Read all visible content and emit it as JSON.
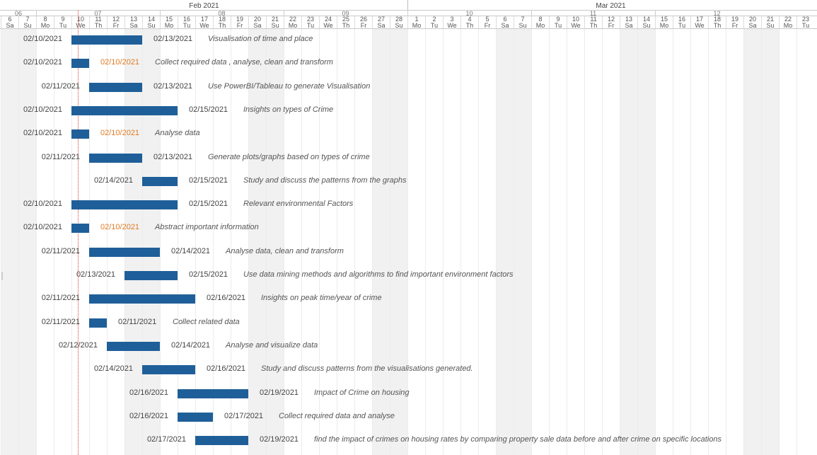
{
  "timeline": {
    "start_date": "2021-02-06",
    "visible_days": 46,
    "months": [
      {
        "label": "Feb 2021",
        "start": "2021-02-01",
        "end": "2021-02-28"
      },
      {
        "label": "Mar 2021",
        "start": "2021-03-01",
        "end": "2021-03-31"
      }
    ],
    "weeks": [
      "06",
      "07",
      "08",
      "09",
      "10",
      "11",
      "12"
    ],
    "today": "2021-02-10",
    "colors": {
      "bar": "#1f5f99",
      "milestone_date": "#e07b22",
      "today_line": "#d93a3a",
      "weekend": "#f1f1f1"
    }
  },
  "tasks": [
    {
      "start_label": "02/10/2021",
      "end_label": "02/13/2021",
      "name": "Visualisation of time and place",
      "start": "2021-02-10",
      "end": "2021-02-13",
      "milestone": false
    },
    {
      "start_label": "02/10/2021",
      "end_label": "02/10/2021",
      "name": "Collect required data , analyse, clean and transform",
      "start": "2021-02-10",
      "end": "2021-02-10",
      "milestone": true
    },
    {
      "start_label": "02/11/2021",
      "end_label": "02/13/2021",
      "name": "Use PowerBI/Tableau to generate Visualisation",
      "start": "2021-02-11",
      "end": "2021-02-13",
      "milestone": false
    },
    {
      "start_label": "02/10/2021",
      "end_label": "02/15/2021",
      "name": "Insights on types of Crime",
      "start": "2021-02-10",
      "end": "2021-02-15",
      "milestone": false
    },
    {
      "start_label": "02/10/2021",
      "end_label": "02/10/2021",
      "name": "Analyse data",
      "start": "2021-02-10",
      "end": "2021-02-10",
      "milestone": true
    },
    {
      "start_label": "02/11/2021",
      "end_label": "02/13/2021",
      "name": "Generate plots/graphs based on types of crime",
      "start": "2021-02-11",
      "end": "2021-02-13",
      "milestone": false
    },
    {
      "start_label": "02/14/2021",
      "end_label": "02/15/2021",
      "name": "Study and discuss the patterns from the graphs",
      "start": "2021-02-14",
      "end": "2021-02-15",
      "milestone": false
    },
    {
      "start_label": "02/10/2021",
      "end_label": "02/15/2021",
      "name": "Relevant environmental Factors",
      "start": "2021-02-10",
      "end": "2021-02-15",
      "milestone": false
    },
    {
      "start_label": "02/10/2021",
      "end_label": "02/10/2021",
      "name": "Abstract important information",
      "start": "2021-02-10",
      "end": "2021-02-10",
      "milestone": true
    },
    {
      "start_label": "02/11/2021",
      "end_label": "02/14/2021",
      "name": "Analyse data, clean and transform",
      "start": "2021-02-11",
      "end": "2021-02-14",
      "milestone": false
    },
    {
      "start_label": "02/13/2021",
      "end_label": "02/15/2021",
      "name": "Use data mining methods and algorithms to find important environment factors",
      "start": "2021-02-13",
      "end": "2021-02-15",
      "milestone": false
    },
    {
      "start_label": "02/11/2021",
      "end_label": "02/16/2021",
      "name": "Insights on peak time/year of crime",
      "start": "2021-02-11",
      "end": "2021-02-16",
      "milestone": false
    },
    {
      "start_label": "02/11/2021",
      "end_label": "02/11/2021",
      "name": "Collect related data",
      "start": "2021-02-11",
      "end": "2021-02-11",
      "milestone": false
    },
    {
      "start_label": "02/12/2021",
      "end_label": "02/14/2021",
      "name": "Analyse and visualize data",
      "start": "2021-02-12",
      "end": "2021-02-14",
      "milestone": false
    },
    {
      "start_label": "02/14/2021",
      "end_label": "02/16/2021",
      "name": "Study and discuss patterns from the visualisations generated.",
      "start": "2021-02-14",
      "end": "2021-02-16",
      "milestone": false
    },
    {
      "start_label": "02/16/2021",
      "end_label": "02/19/2021",
      "name": "Impact of Crime on housing",
      "start": "2021-02-16",
      "end": "2021-02-19",
      "milestone": false
    },
    {
      "start_label": "02/16/2021",
      "end_label": "02/17/2021",
      "name": "Collect required data and analyse",
      "start": "2021-02-16",
      "end": "2021-02-17",
      "milestone": false
    },
    {
      "start_label": "02/17/2021",
      "end_label": "02/19/2021",
      "name": "find the impact of crimes on housing rates by comparing property sale data before and after crime on specific locations",
      "start": "2021-02-17",
      "end": "2021-02-19",
      "milestone": false
    }
  ]
}
